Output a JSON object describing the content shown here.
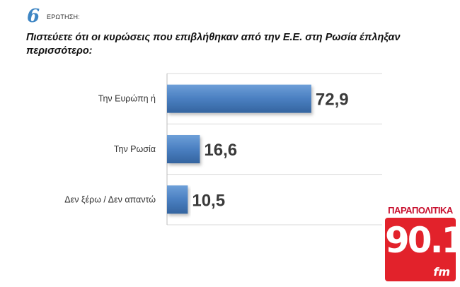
{
  "header": {
    "question_number": "6",
    "question_label": "ΕΡΩΤΗΣΗ:",
    "question_text": "Πιστεύετε ότι οι κυρώσεις που επιβλήθηκαν από την Ε.Ε. στη Ρωσία έπληξαν περισσότερο:"
  },
  "chart_data": {
    "type": "bar",
    "orientation": "horizontal",
    "categories": [
      "Την Ευρώπη ή",
      "Την Ρωσία",
      "Δεν ξέρω / Δεν απαντώ"
    ],
    "values": [
      72.9,
      16.6,
      10.5
    ],
    "value_labels": [
      "72,9",
      "16,6",
      "10,5"
    ],
    "xlim": [
      0,
      100
    ],
    "grid": true,
    "bar_color": "#4a7fc1"
  },
  "logo": {
    "top_text": "ΠΑΡΑΠΟΛΙΤΙΚΑ",
    "number": "90.1",
    "suffix": "fm"
  }
}
